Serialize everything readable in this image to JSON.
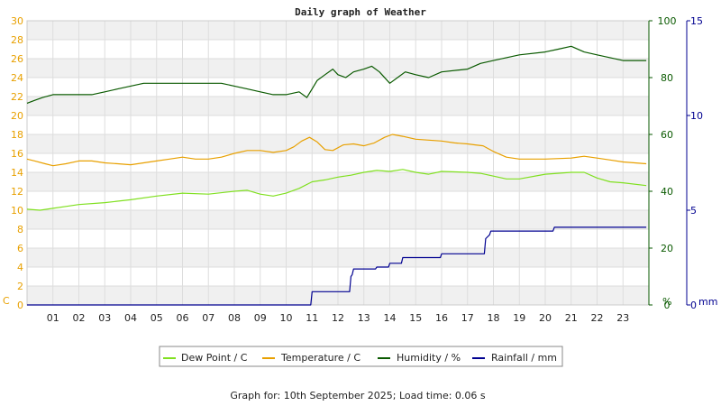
{
  "chart_data": {
    "type": "line",
    "title": "Daily graph of Weather",
    "colors": {
      "temperature": "#e8a000",
      "dew_point": "#80e020",
      "humidity": "#0a5a00",
      "rainfall": "#000090",
      "left_axis": "#e8a000",
      "right_axis1": "#0a5a00",
      "right_axis2": "#000090"
    },
    "x_axis": {
      "range": [
        0,
        24
      ],
      "tick_labels": [
        "01",
        "02",
        "03",
        "04",
        "05",
        "06",
        "07",
        "08",
        "09",
        "10",
        "11",
        "12",
        "13",
        "14",
        "15",
        "16",
        "17",
        "18",
        "19",
        "20",
        "21",
        "22",
        "23"
      ]
    },
    "y_left": {
      "unit": "C",
      "range": [
        0,
        30
      ],
      "ticks": [
        0,
        2,
        4,
        6,
        8,
        10,
        12,
        14,
        16,
        18,
        20,
        22,
        24,
        26,
        28,
        30
      ]
    },
    "y_right1": {
      "unit": "%",
      "range": [
        0,
        100
      ],
      "ticks": [
        0,
        20,
        40,
        60,
        80,
        100
      ]
    },
    "y_right2": {
      "unit": "mm",
      "range": [
        0,
        15
      ],
      "ticks": [
        0,
        5,
        10,
        15
      ]
    },
    "series": [
      {
        "name": "Dew Point / C",
        "axis": "left",
        "x": [
          0,
          0.5,
          1,
          1.5,
          2,
          3,
          4,
          5,
          6,
          7,
          8,
          8.5,
          9,
          9.5,
          10,
          10.5,
          11,
          11.5,
          12,
          12.5,
          13,
          13.5,
          14,
          14.5,
          15,
          15.5,
          16,
          17,
          17.5,
          18,
          18.5,
          19,
          20,
          21,
          21.5,
          22,
          22.5,
          23,
          23.9
        ],
        "y": [
          10.1,
          10.0,
          10.2,
          10.4,
          10.6,
          10.8,
          11.1,
          11.5,
          11.8,
          11.7,
          12.0,
          12.1,
          11.7,
          11.5,
          11.8,
          12.3,
          13.0,
          13.2,
          13.5,
          13.7,
          14.0,
          14.2,
          14.1,
          14.3,
          14.0,
          13.8,
          14.1,
          14.0,
          13.9,
          13.6,
          13.3,
          13.3,
          13.8,
          14.0,
          14.0,
          13.4,
          13.0,
          12.9,
          12.6
        ]
      },
      {
        "name": "Temperature / C",
        "axis": "left",
        "x": [
          0,
          0.3,
          0.7,
          1,
          1.5,
          2,
          2.5,
          3,
          3.5,
          4,
          4.5,
          5,
          5.5,
          6,
          6.5,
          7,
          7.5,
          8,
          8.5,
          9,
          9.5,
          10,
          10.3,
          10.6,
          10.9,
          11.2,
          11.5,
          11.8,
          12.2,
          12.6,
          13,
          13.4,
          13.8,
          14.1,
          14.5,
          15,
          16,
          16.5,
          17,
          17.3,
          17.6,
          18,
          18.5,
          19,
          20,
          21,
          21.5,
          22,
          22.5,
          23,
          23.9
        ],
        "y": [
          15.4,
          15.2,
          14.9,
          14.7,
          14.9,
          15.2,
          15.2,
          15.0,
          14.9,
          14.8,
          15.0,
          15.2,
          15.4,
          15.6,
          15.4,
          15.4,
          15.6,
          16.0,
          16.3,
          16.3,
          16.1,
          16.3,
          16.7,
          17.3,
          17.7,
          17.2,
          16.4,
          16.3,
          16.9,
          17.0,
          16.8,
          17.1,
          17.7,
          18.0,
          17.8,
          17.5,
          17.3,
          17.1,
          17.0,
          16.9,
          16.8,
          16.2,
          15.6,
          15.4,
          15.4,
          15.5,
          15.7,
          15.5,
          15.3,
          15.1,
          14.9
        ]
      },
      {
        "name": "Humidity / %",
        "axis": "right1",
        "x": [
          0,
          0.3,
          0.6,
          1,
          1.5,
          2,
          2.5,
          3,
          3.5,
          4,
          4.5,
          5,
          5.5,
          6,
          6.5,
          7,
          7.5,
          8,
          8.5,
          9,
          9.5,
          10,
          10.5,
          10.8,
          11,
          11.2,
          11.5,
          11.8,
          12,
          12.3,
          12.6,
          13,
          13.3,
          13.6,
          14,
          14.3,
          14.6,
          15,
          15.5,
          16,
          17,
          17.5,
          18,
          18.5,
          19,
          20,
          20.5,
          21,
          21.5,
          22,
          22.5,
          23,
          23.9
        ],
        "y": [
          71,
          72,
          73,
          74,
          74,
          74,
          74,
          75,
          76,
          77,
          78,
          78,
          78,
          78,
          78,
          78,
          78,
          77,
          76,
          75,
          74,
          74,
          75,
          73,
          76,
          79,
          81,
          83,
          81,
          80,
          82,
          83,
          84,
          82,
          78,
          80,
          82,
          81,
          80,
          82,
          83,
          85,
          86,
          87,
          88,
          89,
          90,
          91,
          89,
          88,
          87,
          86,
          86
        ]
      },
      {
        "name": "Rainfall / mm",
        "axis": "right2",
        "step": true,
        "x": [
          0,
          10.95,
          11,
          12.45,
          12.5,
          12.55,
          12.6,
          13.45,
          13.5,
          13.95,
          14.0,
          14.45,
          14.5,
          15.95,
          16.0,
          17.65,
          17.7,
          17.85,
          17.9,
          20.3,
          20.35,
          23.9
        ],
        "y": [
          0,
          0,
          0.7,
          0.7,
          1.5,
          1.6,
          1.9,
          1.9,
          2.0,
          2.0,
          2.2,
          2.2,
          2.5,
          2.5,
          2.7,
          2.7,
          3.5,
          3.7,
          3.9,
          3.9,
          4.1,
          4.1
        ]
      }
    ],
    "legend": {
      "placement": "bottom",
      "items": [
        {
          "label": "Dew Point / C",
          "color": "#80e020"
        },
        {
          "label": "Temperature / C",
          "color": "#e8a000"
        },
        {
          "label": "Humidity / %",
          "color": "#0a5a00"
        },
        {
          "label": "Rainfall / mm",
          "color": "#000090"
        }
      ]
    },
    "grid": true
  },
  "footer": {
    "text": "Graph for: 10th September 2025; Load time: 0.06 s"
  }
}
